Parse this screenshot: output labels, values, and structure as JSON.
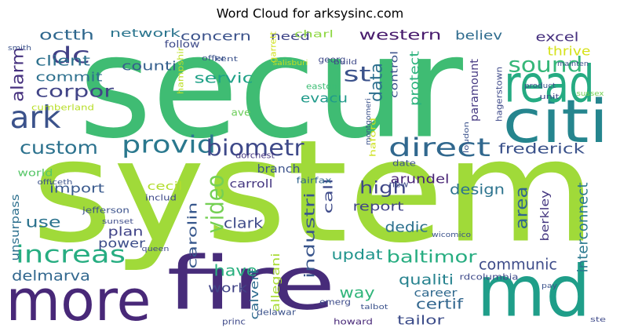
{
  "chart_data": {
    "type": "wordcloud",
    "title": "Word Cloud for arksysinc.com",
    "words": [
      {
        "text": "secur",
        "weight": 100,
        "color": "#3fbc73"
      },
      {
        "text": "system",
        "weight": 100,
        "color": "#a0da39"
      },
      {
        "text": "fire",
        "weight": 52,
        "color": "#472c7a"
      },
      {
        "text": "more",
        "weight": 40,
        "color": "#482878"
      },
      {
        "text": "md",
        "weight": 50,
        "color": "#1f9e89"
      },
      {
        "text": "citi",
        "weight": 42,
        "color": "#25858e"
      },
      {
        "text": "read",
        "weight": 36,
        "color": "#25ab82"
      },
      {
        "text": "ark",
        "weight": 22,
        "color": "#3b528b"
      },
      {
        "text": "provid",
        "weight": 17,
        "color": "#2a788e"
      },
      {
        "text": "biometr",
        "weight": 16,
        "color": "#3e4989"
      },
      {
        "text": "direct",
        "weight": 18,
        "color": "#31688e"
      },
      {
        "text": "increas",
        "weight": 17,
        "color": "#26ad81"
      },
      {
        "text": "video",
        "weight": 17,
        "color": "#75d054"
      },
      {
        "text": "custom",
        "weight": 13,
        "color": "#2c728e"
      },
      {
        "text": "sound",
        "weight": 15,
        "color": "#35b779"
      },
      {
        "text": "dc",
        "weight": 16,
        "color": "#424086"
      },
      {
        "text": "octth",
        "weight": 10,
        "color": "#30688e"
      },
      {
        "text": "alarm",
        "weight": 12,
        "color": "#46317e"
      },
      {
        "text": "commit",
        "weight": 9,
        "color": "#2d708e"
      },
      {
        "text": "corpor",
        "weight": 12,
        "color": "#414487"
      },
      {
        "text": "client",
        "weight": 10,
        "color": "#2d718e"
      },
      {
        "text": "network",
        "weight": 8,
        "color": "#2b758e"
      },
      {
        "text": "concern",
        "weight": 9,
        "color": "#3b528b"
      },
      {
        "text": "counti",
        "weight": 9,
        "color": "#355f8d"
      },
      {
        "text": "servic",
        "weight": 10,
        "color": "#1fa187"
      },
      {
        "text": "need",
        "weight": 8,
        "color": "#404688"
      },
      {
        "text": "charl",
        "weight": 7,
        "color": "#8fd744"
      },
      {
        "text": "western",
        "weight": 10,
        "color": "#481b6d"
      },
      {
        "text": "st",
        "weight": 15,
        "color": "#3b528b"
      },
      {
        "text": "data",
        "weight": 12,
        "color": "#2d708e"
      },
      {
        "text": "protect",
        "weight": 9,
        "color": "#2db27d"
      },
      {
        "text": "control",
        "weight": 7,
        "color": "#3b528b"
      },
      {
        "text": "evacu",
        "weight": 9,
        "color": "#1f9a8a"
      },
      {
        "text": "believ",
        "weight": 9,
        "color": "#2f6c8e"
      },
      {
        "text": "excel",
        "weight": 9,
        "color": "#46307e"
      },
      {
        "text": "thrive",
        "weight": 9,
        "color": "#d5e21a"
      },
      {
        "text": "frederick",
        "weight": 10,
        "color": "#3b528b"
      },
      {
        "text": "paramount",
        "weight": 8,
        "color": "#453882"
      },
      {
        "text": "arundel",
        "weight": 9,
        "color": "#482475"
      },
      {
        "text": "high",
        "weight": 12,
        "color": "#3f4788"
      },
      {
        "text": "import",
        "weight": 9,
        "color": "#38588c"
      },
      {
        "text": "use",
        "weight": 11,
        "color": "#2c738e"
      },
      {
        "text": "world",
        "weight": 7,
        "color": "#56c667"
      },
      {
        "text": "cecil",
        "weight": 8,
        "color": "#b2dd2d"
      },
      {
        "text": "unsurpass",
        "weight": 8,
        "color": "#2d708e"
      },
      {
        "text": "plan",
        "weight": 9,
        "color": "#404387"
      },
      {
        "text": "power",
        "weight": 9,
        "color": "#3d4e8a"
      },
      {
        "text": "carolin",
        "weight": 9,
        "color": "#37578c"
      },
      {
        "text": "carroll",
        "weight": 8,
        "color": "#453781"
      },
      {
        "text": "clark",
        "weight": 10,
        "color": "#3e4a89"
      },
      {
        "text": "have",
        "weight": 11,
        "color": "#2ab07f"
      },
      {
        "text": "work",
        "weight": 9,
        "color": "#414487"
      },
      {
        "text": "calvert",
        "weight": 8,
        "color": "#2e6b8e"
      },
      {
        "text": "allegani",
        "weight": 8,
        "color": "#a8db34"
      },
      {
        "text": "industri",
        "weight": 10,
        "color": "#39558c"
      },
      {
        "text": "call",
        "weight": 9,
        "color": "#3e4a89"
      },
      {
        "text": "report",
        "weight": 9,
        "color": "#414487"
      },
      {
        "text": "updat",
        "weight": 10,
        "color": "#1f948c"
      },
      {
        "text": "baltimor",
        "weight": 12,
        "color": "#27ad81"
      },
      {
        "text": "dedic",
        "weight": 10,
        "color": "#2d718e"
      },
      {
        "text": "design",
        "weight": 10,
        "color": "#2c738e"
      },
      {
        "text": "area",
        "weight": 12,
        "color": "#31668e"
      },
      {
        "text": "berkley",
        "weight": 8,
        "color": "#453781"
      },
      {
        "text": "interconnect",
        "weight": 10,
        "color": "#2a788e"
      },
      {
        "text": "communic",
        "weight": 11,
        "color": "#3e4c8a"
      },
      {
        "text": "qualiti",
        "weight": 10,
        "color": "#26828e"
      },
      {
        "text": "career",
        "weight": 8,
        "color": "#30698e"
      },
      {
        "text": "certif",
        "weight": 10,
        "color": "#31668e"
      },
      {
        "text": "tailor",
        "weight": 9,
        "color": "#3d4d8a"
      },
      {
        "text": "way",
        "weight": 11,
        "color": "#31b57b"
      },
      {
        "text": "emerg",
        "weight": 6,
        "color": "#3e4c8a"
      },
      {
        "text": "howard",
        "weight": 6,
        "color": "#482878"
      },
      {
        "text": "delmarva",
        "weight": 10,
        "color": "#31678e"
      },
      {
        "text": "branch",
        "weight": 8,
        "color": "#3b528b"
      },
      {
        "text": "dorchest",
        "weight": 6,
        "color": "#453781"
      },
      {
        "text": "hampshir",
        "weight": 6,
        "color": "#bddf26"
      },
      {
        "text": "cumberland",
        "weight": 6,
        "color": "#b8de29"
      },
      {
        "text": "ave",
        "weight": 7,
        "color": "#6ccd5a"
      },
      {
        "text": "kent",
        "weight": 5,
        "color": "#3b528b"
      },
      {
        "text": "follow",
        "weight": 7,
        "color": "#3e4a89"
      },
      {
        "text": "delawar",
        "weight": 6,
        "color": "#3b528b"
      },
      {
        "text": "rdcolumbia",
        "weight": 6,
        "color": "#3e4989"
      },
      {
        "text": "jefferson",
        "weight": 6,
        "color": "#3b528b"
      },
      {
        "text": "sunset",
        "weight": 5,
        "color": "#3e4c8a"
      },
      {
        "text": "fairfax",
        "weight": 6,
        "color": "#31668e"
      },
      {
        "text": "haford",
        "weight": 6,
        "color": "#cde11d"
      },
      {
        "text": "loudon",
        "weight": 5,
        "color": "#3b528b"
      },
      {
        "text": "hagerstown",
        "weight": 6,
        "color": "#3e4989"
      },
      {
        "text": "montgomeri",
        "weight": 5,
        "color": "#3b528b"
      },
      {
        "text": "georg",
        "weight": 6,
        "color": "#3e4989"
      },
      {
        "text": "easton",
        "weight": 6,
        "color": "#3dbc74"
      },
      {
        "text": "wicomico",
        "weight": 5,
        "color": "#3b528b"
      },
      {
        "text": "talbot",
        "weight": 5,
        "color": "#3b528b"
      },
      {
        "text": "princ",
        "weight": 6,
        "color": "#3e4989"
      },
      {
        "text": "salisburi",
        "weight": 5,
        "color": "#c2df23"
      },
      {
        "text": "smith",
        "weight": 5,
        "color": "#3b528b"
      },
      {
        "text": "garrett",
        "weight": 6,
        "color": "#d0e11c"
      },
      {
        "text": "includ",
        "weight": 6,
        "color": "#3e4989"
      },
      {
        "text": "mainten",
        "weight": 5,
        "color": "#3b528b"
      },
      {
        "text": "sussex",
        "weight": 5,
        "color": "#75d054"
      },
      {
        "text": "product",
        "weight": 5,
        "color": "#3b528b"
      },
      {
        "text": "queen",
        "weight": 5,
        "color": "#3e4989"
      },
      {
        "text": "date",
        "weight": 6,
        "color": "#3b528b"
      },
      {
        "text": "new",
        "weight": 6,
        "color": "#3e4989"
      },
      {
        "text": "officeth",
        "weight": 5,
        "color": "#3b528b"
      },
      {
        "text": "build",
        "weight": 5,
        "color": "#3e4989"
      },
      {
        "text": "offer",
        "weight": 5,
        "color": "#3b528b"
      },
      {
        "text": "ste",
        "weight": 5,
        "color": "#3e4989"
      },
      {
        "text": "pay",
        "weight": 5,
        "color": "#3b528b"
      },
      {
        "text": "unit",
        "weight": 5,
        "color": "#3e4989"
      }
    ]
  }
}
